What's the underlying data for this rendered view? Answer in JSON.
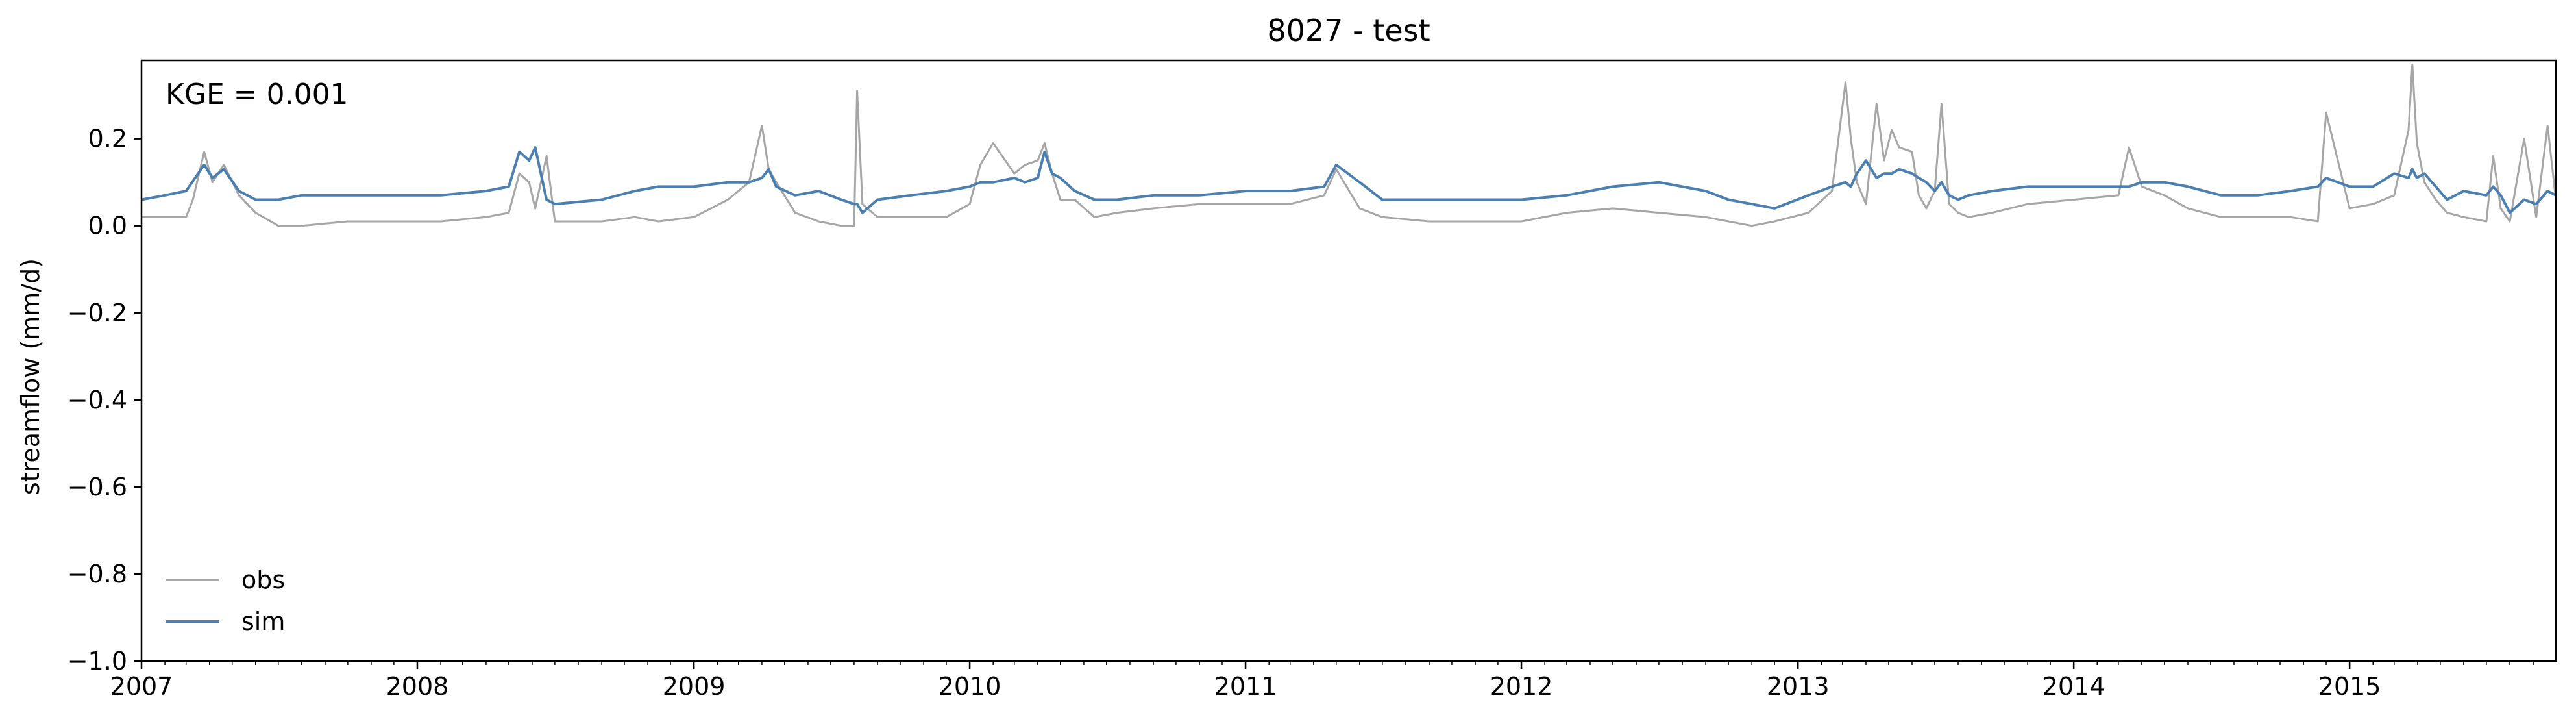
{
  "chart_data": {
    "type": "line",
    "title": "8027 - test",
    "xlabel": "",
    "ylabel": "streamflow (mm/d)",
    "annotation": "KGE = 0.001",
    "xlim": [
      "2007-01-01",
      "2015-10-01"
    ],
    "ylim": [
      -1.0,
      0.38
    ],
    "x_ticks": [
      "2007",
      "2008",
      "2009",
      "2010",
      "2011",
      "2012",
      "2013",
      "2014",
      "2015"
    ],
    "y_ticks": [
      "−1.0",
      "−0.8",
      "−0.6",
      "−0.4",
      "−0.2",
      "0.0",
      "0.2"
    ],
    "grid": false,
    "legend_position": "bottom-left",
    "series": [
      {
        "name": "obs",
        "color": "#a6a6a6",
        "x": [
          "2007-01-01",
          "2007-03-01",
          "2007-03-10",
          "2007-03-25",
          "2007-04-05",
          "2007-04-20",
          "2007-05-10",
          "2007-06-01",
          "2007-07-01",
          "2007-08-01",
          "2007-10-01",
          "2007-12-01",
          "2008-02-01",
          "2008-04-01",
          "2008-05-01",
          "2008-05-15",
          "2008-05-28",
          "2008-06-05",
          "2008-06-20",
          "2008-07-01",
          "2008-09-01",
          "2008-10-15",
          "2008-11-15",
          "2009-01-01",
          "2009-02-15",
          "2009-03-15",
          "2009-04-01",
          "2009-04-10",
          "2009-04-20",
          "2009-05-15",
          "2009-06-15",
          "2009-07-15",
          "2009-08-01",
          "2009-08-05",
          "2009-08-12",
          "2009-09-01",
          "2009-10-15",
          "2009-12-01",
          "2010-01-01",
          "2010-01-15",
          "2010-02-01",
          "2010-03-01",
          "2010-03-15",
          "2010-04-01",
          "2010-04-10",
          "2010-04-20",
          "2010-05-01",
          "2010-05-20",
          "2010-06-15",
          "2010-07-15",
          "2010-09-01",
          "2010-11-01",
          "2011-01-01",
          "2011-03-01",
          "2011-04-15",
          "2011-05-01",
          "2011-06-01",
          "2011-07-01",
          "2011-09-01",
          "2011-11-01",
          "2012-01-01",
          "2012-03-01",
          "2012-05-01",
          "2012-07-01",
          "2012-09-01",
          "2012-10-01",
          "2012-11-01",
          "2012-12-01",
          "2013-01-15",
          "2013-02-15",
          "2013-03-05",
          "2013-03-12",
          "2013-03-20",
          "2013-04-01",
          "2013-04-15",
          "2013-04-25",
          "2013-05-05",
          "2013-05-15",
          "2013-06-01",
          "2013-06-10",
          "2013-06-20",
          "2013-07-01",
          "2013-07-10",
          "2013-07-20",
          "2013-08-01",
          "2013-08-15",
          "2013-09-15",
          "2013-11-01",
          "2014-01-01",
          "2014-03-01",
          "2014-03-15",
          "2014-04-01",
          "2014-05-01",
          "2014-06-01",
          "2014-07-15",
          "2014-09-01",
          "2014-10-15",
          "2014-11-20",
          "2014-12-01",
          "2015-01-01",
          "2015-02-01",
          "2015-03-01",
          "2015-03-20",
          "2015-03-25",
          "2015-03-31",
          "2015-04-10",
          "2015-04-25",
          "2015-05-10",
          "2015-06-01",
          "2015-07-01",
          "2015-07-10",
          "2015-07-20",
          "2015-08-01",
          "2015-08-20",
          "2015-09-05",
          "2015-09-20",
          "2015-10-01"
        ],
        "values": [
          0.02,
          0.02,
          0.06,
          0.17,
          0.1,
          0.14,
          0.07,
          0.03,
          0.0,
          0.0,
          0.01,
          0.01,
          0.01,
          0.02,
          0.03,
          0.12,
          0.1,
          0.04,
          0.16,
          0.01,
          0.01,
          0.02,
          0.01,
          0.02,
          0.06,
          0.1,
          0.23,
          0.13,
          0.1,
          0.03,
          0.01,
          0.0,
          0.0,
          0.31,
          0.05,
          0.02,
          0.02,
          0.02,
          0.05,
          0.14,
          0.19,
          0.12,
          0.14,
          0.15,
          0.19,
          0.12,
          0.06,
          0.06,
          0.02,
          0.03,
          0.04,
          0.05,
          0.05,
          0.05,
          0.07,
          0.13,
          0.04,
          0.02,
          0.01,
          0.01,
          0.01,
          0.03,
          0.04,
          0.03,
          0.02,
          0.01,
          0.0,
          0.01,
          0.03,
          0.08,
          0.33,
          0.2,
          0.1,
          0.05,
          0.28,
          0.15,
          0.22,
          0.18,
          0.17,
          0.07,
          0.04,
          0.08,
          0.28,
          0.05,
          0.03,
          0.02,
          0.03,
          0.05,
          0.06,
          0.07,
          0.18,
          0.09,
          0.07,
          0.04,
          0.02,
          0.02,
          0.02,
          0.01,
          0.26,
          0.04,
          0.05,
          0.07,
          0.22,
          0.37,
          0.19,
          0.1,
          0.06,
          0.03,
          0.02,
          0.01,
          0.16,
          0.04,
          0.01,
          0.2,
          0.02,
          0.23,
          0.06
        ]
      },
      {
        "name": "sim",
        "color": "#4a7fb0",
        "x": [
          "2007-01-01",
          "2007-02-01",
          "2007-03-01",
          "2007-03-25",
          "2007-04-05",
          "2007-04-20",
          "2007-05-10",
          "2007-06-01",
          "2007-07-01",
          "2007-08-01",
          "2007-10-01",
          "2007-12-01",
          "2008-02-01",
          "2008-04-01",
          "2008-05-01",
          "2008-05-15",
          "2008-05-28",
          "2008-06-05",
          "2008-06-20",
          "2008-07-01",
          "2008-09-01",
          "2008-10-15",
          "2008-11-15",
          "2009-01-01",
          "2009-02-15",
          "2009-03-15",
          "2009-04-01",
          "2009-04-10",
          "2009-04-20",
          "2009-05-15",
          "2009-06-15",
          "2009-07-15",
          "2009-08-01",
          "2009-08-05",
          "2009-08-12",
          "2009-09-01",
          "2009-10-15",
          "2009-12-01",
          "2010-01-01",
          "2010-01-15",
          "2010-02-01",
          "2010-03-01",
          "2010-03-15",
          "2010-04-01",
          "2010-04-10",
          "2010-04-20",
          "2010-05-01",
          "2010-05-20",
          "2010-06-15",
          "2010-07-15",
          "2010-09-01",
          "2010-11-01",
          "2011-01-01",
          "2011-03-01",
          "2011-04-15",
          "2011-05-01",
          "2011-06-01",
          "2011-07-01",
          "2011-09-01",
          "2011-11-01",
          "2012-01-01",
          "2012-03-01",
          "2012-05-01",
          "2012-07-01",
          "2012-09-01",
          "2012-10-01",
          "2012-11-01",
          "2012-12-01",
          "2013-01-15",
          "2013-02-15",
          "2013-03-05",
          "2013-03-12",
          "2013-03-20",
          "2013-04-01",
          "2013-04-15",
          "2013-04-25",
          "2013-05-05",
          "2013-05-15",
          "2013-06-01",
          "2013-06-10",
          "2013-06-20",
          "2013-07-01",
          "2013-07-10",
          "2013-07-20",
          "2013-08-01",
          "2013-08-15",
          "2013-09-15",
          "2013-11-01",
          "2014-01-01",
          "2014-03-01",
          "2014-03-15",
          "2014-04-01",
          "2014-05-01",
          "2014-06-01",
          "2014-07-15",
          "2014-09-01",
          "2014-10-15",
          "2014-11-20",
          "2014-12-01",
          "2015-01-01",
          "2015-02-01",
          "2015-03-01",
          "2015-03-20",
          "2015-03-25",
          "2015-03-31",
          "2015-04-10",
          "2015-04-25",
          "2015-05-10",
          "2015-06-01",
          "2015-07-01",
          "2015-07-10",
          "2015-07-20",
          "2015-08-01",
          "2015-08-20",
          "2015-09-05",
          "2015-09-20",
          "2015-10-01"
        ],
        "values": [
          0.06,
          0.07,
          0.08,
          0.14,
          0.11,
          0.13,
          0.08,
          0.06,
          0.06,
          0.07,
          0.07,
          0.07,
          0.07,
          0.08,
          0.09,
          0.17,
          0.15,
          0.18,
          0.06,
          0.05,
          0.06,
          0.08,
          0.09,
          0.09,
          0.1,
          0.1,
          0.11,
          0.13,
          0.09,
          0.07,
          0.08,
          0.06,
          0.05,
          0.05,
          0.03,
          0.06,
          0.07,
          0.08,
          0.09,
          0.1,
          0.1,
          0.11,
          0.1,
          0.11,
          0.17,
          0.12,
          0.11,
          0.08,
          0.06,
          0.06,
          0.07,
          0.07,
          0.08,
          0.08,
          0.09,
          0.14,
          0.1,
          0.06,
          0.06,
          0.06,
          0.06,
          0.07,
          0.09,
          0.1,
          0.08,
          0.06,
          0.05,
          0.04,
          0.07,
          0.09,
          0.1,
          0.09,
          0.12,
          0.15,
          0.11,
          0.12,
          0.12,
          0.13,
          0.12,
          0.11,
          0.1,
          0.08,
          0.1,
          0.07,
          0.06,
          0.07,
          0.08,
          0.09,
          0.09,
          0.09,
          0.09,
          0.1,
          0.1,
          0.09,
          0.07,
          0.07,
          0.08,
          0.09,
          0.11,
          0.09,
          0.09,
          0.12,
          0.11,
          0.13,
          0.11,
          0.12,
          0.09,
          0.06,
          0.08,
          0.07,
          0.09,
          0.07,
          0.03,
          0.06,
          0.05,
          0.08,
          0.07
        ]
      }
    ]
  }
}
